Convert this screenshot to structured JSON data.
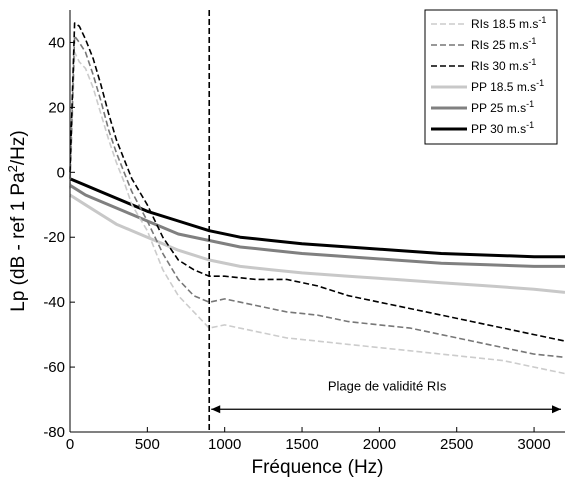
{
  "chart_data": {
    "type": "line",
    "xlabel": "Fréquence (Hz)",
    "ylabel_prefix": "Lp (dB - ref 1 Pa",
    "ylabel_sup": "2",
    "ylabel_suffix": "/Hz)",
    "xlim": [
      0,
      3200
    ],
    "ylim": [
      -80,
      50
    ],
    "xticks": [
      0,
      500,
      1000,
      1500,
      2000,
      2500,
      3000
    ],
    "yticks": [
      -80,
      -60,
      -40,
      -20,
      0,
      20,
      40
    ],
    "grid": false,
    "legend_position": "top-right",
    "vline_x": 900,
    "annotation": {
      "text": "Plage de validité RIs",
      "x_start": 900,
      "x_end": 3200,
      "y_arrow": -73,
      "y_text": -66
    },
    "colors": {
      "ris18": "#cccccc",
      "ris25": "#777777",
      "ris30": "#000000",
      "pp18": "#c8c8c8",
      "pp25": "#808080",
      "pp30": "#000000"
    },
    "series": [
      {
        "name": "RIs 18.5 m.s",
        "sup": "-1",
        "style": "dashed",
        "colorKey": "ris18",
        "x": [
          0,
          30,
          60,
          100,
          150,
          200,
          250,
          300,
          350,
          400,
          500,
          600,
          700,
          800,
          900,
          1000,
          1200,
          1400,
          1600,
          1800,
          2000,
          2200,
          2400,
          2600,
          2800,
          3000,
          3200
        ],
        "y": [
          -5,
          37,
          34,
          32,
          26,
          18,
          10,
          3,
          -3,
          -10,
          -18,
          -30,
          -38,
          -43,
          -48,
          -47,
          -49,
          -51,
          -52,
          -53,
          -54,
          -55,
          -56,
          -57,
          -58,
          -60,
          -62
        ]
      },
      {
        "name": "RIs 25 m.s",
        "sup": "-1",
        "style": "dashed",
        "colorKey": "ris25",
        "x": [
          0,
          30,
          60,
          100,
          150,
          200,
          250,
          300,
          350,
          400,
          500,
          600,
          700,
          800,
          900,
          1000,
          1200,
          1400,
          1600,
          1800,
          2000,
          2200,
          2400,
          2600,
          2800,
          3000,
          3200
        ],
        "y": [
          -2,
          42,
          40,
          37,
          30,
          22,
          13,
          6,
          0,
          -6,
          -15,
          -25,
          -33,
          -38,
          -40,
          -39,
          -41,
          -43,
          -44,
          -46,
          -47,
          -48,
          -50,
          -52,
          -54,
          -56,
          -57
        ]
      },
      {
        "name": "RIs 30 m.s",
        "sup": "-1",
        "style": "dashed",
        "colorKey": "ris30",
        "x": [
          0,
          30,
          60,
          100,
          150,
          200,
          250,
          300,
          350,
          400,
          500,
          600,
          700,
          800,
          900,
          1000,
          1200,
          1400,
          1600,
          1800,
          2000,
          2200,
          2400,
          2600,
          2800,
          3000,
          3200
        ],
        "y": [
          0,
          46,
          45,
          41,
          35,
          27,
          18,
          10,
          4,
          -2,
          -10,
          -20,
          -27,
          -30,
          -32,
          -32,
          -33,
          -33,
          -35,
          -38,
          -40,
          -42,
          -44,
          -46,
          -48,
          -50,
          -52
        ]
      },
      {
        "name": "PP 18.5 m.s",
        "sup": "-1",
        "style": "solid",
        "colorKey": "pp18",
        "x": [
          0,
          100,
          200,
          300,
          400,
          500,
          700,
          900,
          1100,
          1300,
          1500,
          1800,
          2100,
          2400,
          2700,
          3000,
          3200
        ],
        "y": [
          -7,
          -10,
          -13,
          -16,
          -18,
          -20,
          -24,
          -27,
          -29,
          -30,
          -31,
          -32,
          -33,
          -34,
          -35,
          -36,
          -37
        ]
      },
      {
        "name": "PP 25 m.s",
        "sup": "-1",
        "style": "solid",
        "colorKey": "pp25",
        "x": [
          0,
          100,
          200,
          300,
          400,
          500,
          700,
          900,
          1100,
          1300,
          1500,
          1800,
          2100,
          2400,
          2700,
          3000,
          3200
        ],
        "y": [
          -4,
          -7,
          -9,
          -11,
          -13,
          -15,
          -19,
          -21,
          -23,
          -24,
          -25,
          -26,
          -27,
          -28,
          -28.5,
          -29,
          -29
        ]
      },
      {
        "name": "PP 30 m.s",
        "sup": "-1",
        "style": "solid",
        "colorKey": "pp30",
        "x": [
          0,
          100,
          200,
          300,
          400,
          500,
          700,
          900,
          1100,
          1300,
          1500,
          1800,
          2100,
          2400,
          2700,
          3000,
          3200
        ],
        "y": [
          -2,
          -4,
          -6,
          -8,
          -10,
          -12,
          -15,
          -18,
          -20,
          -21,
          -22,
          -23,
          -24,
          -25,
          -25.5,
          -26,
          -26
        ]
      }
    ]
  }
}
